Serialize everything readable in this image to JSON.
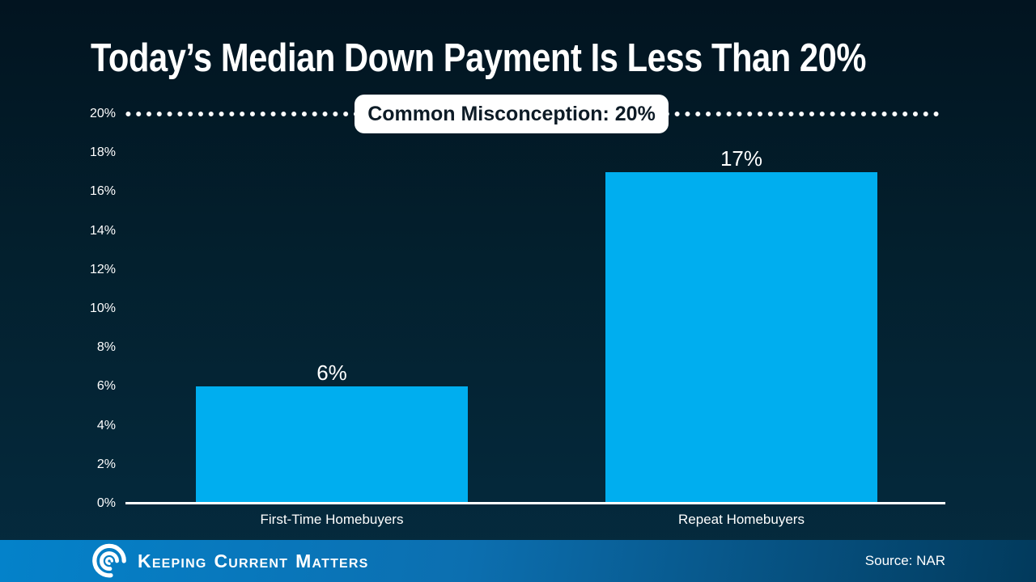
{
  "page": {
    "title": "Today’s Median Down Payment Is Less Than 20%"
  },
  "chart_data": {
    "type": "bar",
    "title": "Today’s Median Down Payment Is Less Than 20%",
    "categories": [
      "First-Time Homebuyers",
      "Repeat Homebuyers"
    ],
    "values": [
      6,
      17
    ],
    "value_labels": [
      "6%",
      "17%"
    ],
    "xlabel": "",
    "ylabel": "",
    "ylim": [
      0,
      20
    ],
    "ytick_interval": 2,
    "yticks": [
      {
        "value": 20,
        "label": "20%"
      },
      {
        "value": 18,
        "label": "18%"
      },
      {
        "value": 16,
        "label": "16%"
      },
      {
        "value": 14,
        "label": "14%"
      },
      {
        "value": 12,
        "label": "12%"
      },
      {
        "value": 10,
        "label": "10%"
      },
      {
        "value": 8,
        "label": "8%"
      },
      {
        "value": 6,
        "label": "6%"
      },
      {
        "value": 4,
        "label": "4%"
      },
      {
        "value": 2,
        "label": "2%"
      },
      {
        "value": 0,
        "label": "0%"
      }
    ],
    "reference_line": {
      "value": 20,
      "style": "dotted",
      "label": "Common Misconception: 20%"
    },
    "grid": false,
    "legend": "none",
    "bar_color": "#00AEEF"
  },
  "annotation": {
    "label": "Common Misconception: 20%"
  },
  "footer": {
    "brand": {
      "icon": "kcm-swirl-logo",
      "words": [
        {
          "initial": "K",
          "rest": "eeping"
        },
        {
          "initial": "C",
          "rest": "urrent"
        },
        {
          "initial": "M",
          "rest": "atters"
        }
      ]
    },
    "source": "Source: NAR"
  },
  "colors": {
    "background_top": "#021420",
    "background_bottom": "#052B3F",
    "bar": "#00AEEF",
    "text": "#FFFFFF",
    "annotation_bg": "#FFFFFF",
    "annotation_text": "#0D1B26",
    "footer_gradient_left": "#0482CA",
    "footer_gradient_right": "#023A5C"
  }
}
